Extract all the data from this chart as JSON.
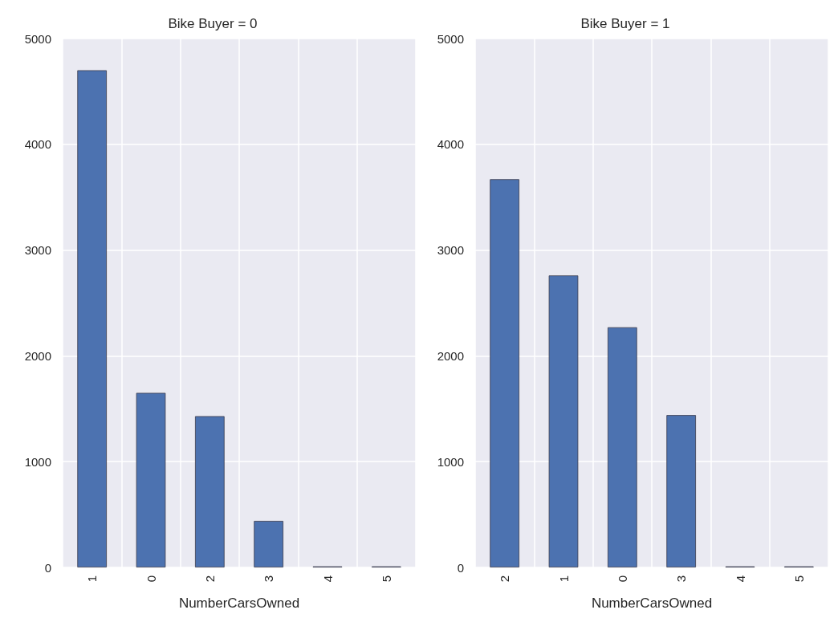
{
  "chart_data": [
    {
      "type": "bar",
      "title": "Bike Buyer = 0",
      "xlabel": "NumberCarsOwned",
      "categories": [
        "1",
        "0",
        "2",
        "3",
        "4",
        "5"
      ],
      "values": [
        4700,
        1650,
        1430,
        440,
        10,
        10
      ],
      "color": "#4c72b0",
      "ylim": [
        0,
        5000
      ],
      "yticks": [
        0,
        1000,
        2000,
        3000,
        4000,
        5000
      ],
      "grid": true
    },
    {
      "type": "bar",
      "title": "Bike Buyer = 1",
      "xlabel": "NumberCarsOwned",
      "categories": [
        "2",
        "1",
        "0",
        "3",
        "4",
        "5"
      ],
      "values": [
        3670,
        2760,
        2270,
        1440,
        10,
        10
      ],
      "color": "#4c72b0",
      "ylim": [
        0,
        5000
      ],
      "yticks": [
        0,
        1000,
        2000,
        3000,
        4000,
        5000
      ],
      "grid": true
    }
  ]
}
